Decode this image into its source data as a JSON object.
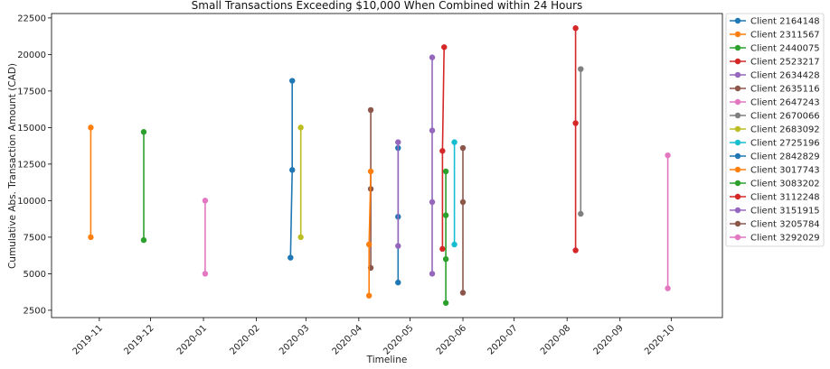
{
  "chart_data": {
    "type": "line",
    "title": "Small Transactions Exceeding $10,000 When Combined within 24 Hours",
    "xlabel": "Timeline",
    "ylabel": "Cumulative Abs. Transaction Amount (CAD)",
    "xlim": [
      "2019-10-04",
      "2020-10-31"
    ],
    "ylim": [
      2000,
      22800
    ],
    "yticks": [
      2500,
      5000,
      7500,
      10000,
      12500,
      15000,
      17500,
      20000,
      22500
    ],
    "xticks": [
      "2019-11",
      "2019-12",
      "2020-01",
      "2020-02",
      "2020-03",
      "2020-04",
      "2020-05",
      "2020-06",
      "2020-07",
      "2020-08",
      "2020-09",
      "2020-10"
    ],
    "grid": false,
    "legend_position": "outside-right",
    "series": [
      {
        "name": "Client 2164148",
        "color": "#1f77b4",
        "points": [
          [
            "2020-02-21",
            6100
          ],
          [
            "2020-02-22",
            12100
          ],
          [
            "2020-02-22",
            18200
          ]
        ]
      },
      {
        "name": "Client 2311567",
        "color": "#ff7f0e",
        "points": [
          [
            "2019-10-27",
            7500
          ],
          [
            "2019-10-27",
            15000
          ]
        ]
      },
      {
        "name": "Client 2440075",
        "color": "#2ca02c",
        "points": [
          [
            "2019-11-27",
            7300
          ],
          [
            "2019-11-27",
            14700
          ]
        ]
      },
      {
        "name": "Client 2523217",
        "color": "#d62728",
        "points": [
          [
            "2020-05-20",
            6700
          ],
          [
            "2020-05-20",
            13400
          ],
          [
            "2020-05-21",
            20500
          ]
        ]
      },
      {
        "name": "Client 2634428",
        "color": "#9467bd",
        "points": [
          [
            "2020-05-14",
            5000
          ],
          [
            "2020-05-14",
            9900
          ],
          [
            "2020-05-14",
            14800
          ],
          [
            "2020-05-14",
            19800
          ]
        ]
      },
      {
        "name": "Client 2635116",
        "color": "#8c564b",
        "points": [
          [
            "2020-04-08",
            5400
          ],
          [
            "2020-04-08",
            10800
          ],
          [
            "2020-04-08",
            16200
          ]
        ]
      },
      {
        "name": "Client 2647243",
        "color": "#e377c2",
        "points": [
          [
            "2020-01-02",
            5000
          ],
          [
            "2020-01-02",
            10000
          ]
        ]
      },
      {
        "name": "Client 2670066",
        "color": "#7f7f7f",
        "points": [
          [
            "2020-08-09",
            9100
          ],
          [
            "2020-08-09",
            19000
          ]
        ]
      },
      {
        "name": "Client 2683092",
        "color": "#bcbd22",
        "points": [
          [
            "2020-02-27",
            7500
          ],
          [
            "2020-02-27",
            15000
          ]
        ]
      },
      {
        "name": "Client 2725196",
        "color": "#17becf",
        "points": [
          [
            "2020-05-27",
            7000
          ],
          [
            "2020-05-27",
            14000
          ]
        ]
      },
      {
        "name": "Client 2842829",
        "color": "#1f77b4",
        "points": [
          [
            "2020-04-24",
            4400
          ],
          [
            "2020-04-24",
            8900
          ],
          [
            "2020-04-24",
            13600
          ]
        ]
      },
      {
        "name": "Client 3017743",
        "color": "#ff7f0e",
        "points": [
          [
            "2020-04-07",
            3500
          ],
          [
            "2020-04-07",
            7000
          ],
          [
            "2020-04-08",
            12000
          ]
        ]
      },
      {
        "name": "Client 3083202",
        "color": "#2ca02c",
        "points": [
          [
            "2020-05-22",
            3000
          ],
          [
            "2020-05-22",
            6000
          ],
          [
            "2020-05-22",
            9000
          ],
          [
            "2020-05-22",
            12000
          ]
        ]
      },
      {
        "name": "Client 3112248",
        "color": "#d62728",
        "points": [
          [
            "2020-08-06",
            6600
          ],
          [
            "2020-08-06",
            15300
          ],
          [
            "2020-08-06",
            21800
          ]
        ]
      },
      {
        "name": "Client 3151915",
        "color": "#9467bd",
        "points": [
          [
            "2020-04-24",
            6900
          ],
          [
            "2020-04-24",
            14000
          ]
        ]
      },
      {
        "name": "Client 3205784",
        "color": "#8c564b",
        "points": [
          [
            "2020-06-01",
            3700
          ],
          [
            "2020-06-01",
            9900
          ],
          [
            "2020-06-01",
            13600
          ]
        ]
      },
      {
        "name": "Client 3292029",
        "color": "#e377c2",
        "points": [
          [
            "2020-09-29",
            4000
          ],
          [
            "2020-09-29",
            13100
          ]
        ]
      }
    ]
  }
}
